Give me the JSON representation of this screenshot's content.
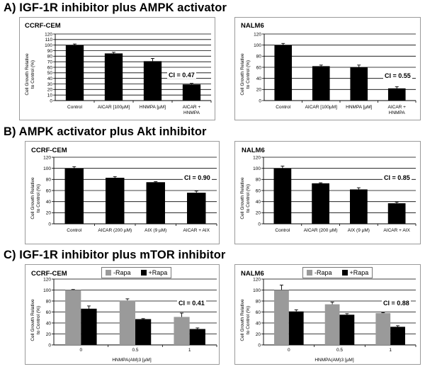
{
  "sections": [
    {
      "title": "A)  IGF-1R inhibitor plus AMPK activator",
      "panels": [
        {
          "panel_title": "CCRF-CEM",
          "ci": "CI = 0.47"
        },
        {
          "panel_title": "NALM6",
          "ci": "CI = 0.55"
        }
      ]
    },
    {
      "title": "B)  AMPK activator plus Akt inhibitor",
      "panels": [
        {
          "panel_title": "CCRF-CEM",
          "ci": "CI = 0.90"
        },
        {
          "panel_title": "NALM6",
          "ci": "CI = 0.85"
        }
      ]
    },
    {
      "title": "C)  IGF-1R inhibitor plus mTOR inhibitor",
      "panels": [
        {
          "panel_title": "CCRF-CEM",
          "ci": "CI = 0.41",
          "legend": [
            "-Rapa",
            "+Rapa"
          ],
          "xtitle": "HNMPA(AM)3 [µM]"
        },
        {
          "panel_title": "NALM6",
          "ci": "CI = 0.88",
          "legend": [
            "-Rapa",
            "+Rapa"
          ],
          "xtitle": "HNMPA(AM)3 [µM]"
        }
      ]
    }
  ],
  "ylabel": [
    "Cell Growth Relative",
    "to Control (%)"
  ],
  "colors": {
    "black_bar": "#000000",
    "grey_bar": "#9a9a9a",
    "frame": "#9a9a9a",
    "grid": "#000000"
  },
  "chart_data": [
    {
      "type": "bar",
      "title": "CCRF-CEM",
      "categories": [
        "Control",
        "AICAR [100µM]",
        "HNMPA [µM]",
        "AICAR +|HNMPA"
      ],
      "values": [
        100,
        85,
        71,
        29
      ],
      "errors": [
        2,
        2,
        5,
        2
      ],
      "ylabel": "Cell Growth Relative to Control (%)",
      "ylim": [
        0,
        120
      ],
      "yticks": [
        0,
        10,
        20,
        30,
        40,
        50,
        60,
        70,
        80,
        90,
        100,
        110,
        120
      ],
      "annotation": "CI = 0.47"
    },
    {
      "type": "bar",
      "title": "NALM6",
      "categories": [
        "Control",
        "AICAR [100µM]",
        "HNMPA [µM]",
        "AICAR +|HNMPA"
      ],
      "values": [
        100,
        62,
        60,
        22
      ],
      "errors": [
        3,
        2,
        4,
        3
      ],
      "ylabel": "Cell Growth Relative to Control (%)",
      "ylim": [
        0,
        120
      ],
      "yticks": [
        0,
        20,
        40,
        60,
        80,
        100,
        120
      ],
      "annotation": "CI = 0.55"
    },
    {
      "type": "bar",
      "title": "CCRF-CEM",
      "categories": [
        "Control",
        "AICAR (200 µM)",
        "AIX (9 µM)",
        "AICAR + AIX"
      ],
      "values": [
        100,
        83,
        75,
        56
      ],
      "errors": [
        3,
        2,
        1,
        3
      ],
      "ylabel": "Cell Growth Relative to Control (%)",
      "ylim": [
        0,
        120
      ],
      "yticks": [
        0,
        20,
        40,
        60,
        80,
        100,
        120
      ],
      "annotation": "CI = 0.90"
    },
    {
      "type": "bar",
      "title": "NALM6",
      "categories": [
        "Control",
        "AICAR (200 µM)",
        "AIX (9 µM)",
        "AICAR + AIX"
      ],
      "values": [
        100,
        73,
        62,
        37
      ],
      "errors": [
        4,
        1,
        3,
        2
      ],
      "ylabel": "Cell Growth Relative to Control (%)",
      "ylim": [
        0,
        120
      ],
      "yticks": [
        0,
        20,
        40,
        60,
        80,
        100,
        120
      ],
      "annotation": "CI = 0.85"
    },
    {
      "type": "bar",
      "title": "CCRF-CEM",
      "categories": [
        "0",
        "0.5",
        "1"
      ],
      "series": [
        {
          "name": "-Rapa",
          "values": [
            100,
            81,
            51
          ],
          "errors": [
            1,
            3,
            7
          ]
        },
        {
          "name": "+Rapa",
          "values": [
            66,
            47,
            29
          ],
          "errors": [
            5,
            1,
            2
          ]
        }
      ],
      "xlabel": "HNMPA(AM)3 [µM]",
      "ylabel": "Cell Growth Relative to Control (%)",
      "ylim": [
        0,
        120
      ],
      "yticks": [
        0,
        20,
        40,
        60,
        80,
        100,
        120
      ],
      "annotation": "CI = 0.41"
    },
    {
      "type": "bar",
      "title": "NALM6",
      "categories": [
        "0",
        "0.5",
        "1"
      ],
      "series": [
        {
          "name": "-Rapa",
          "values": [
            100,
            74,
            58
          ],
          "errors": [
            9,
            4,
            1
          ]
        },
        {
          "name": "+Rapa",
          "values": [
            61,
            55,
            33
          ],
          "errors": [
            3,
            2,
            2
          ]
        }
      ],
      "xlabel": "HNMPA(AM)3 [µM]",
      "ylabel": "Cell Growth Relative to Control (%)",
      "ylim": [
        0,
        120
      ],
      "yticks": [
        0,
        20,
        40,
        60,
        80,
        100,
        120
      ],
      "annotation": "CI = 0.88"
    }
  ]
}
